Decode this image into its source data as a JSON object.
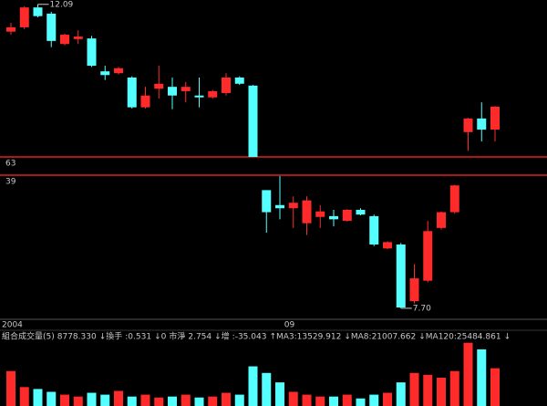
{
  "chart_data": {
    "type": "candlestick",
    "categories": [
      "2004",
      null,
      null,
      null,
      null,
      null,
      null,
      null,
      null,
      null,
      null,
      null,
      null,
      null,
      null,
      null,
      null,
      null,
      null,
      null,
      null,
      "09",
      null,
      null,
      null,
      null,
      null,
      null,
      null,
      null,
      null,
      null,
      null,
      null,
      null,
      null,
      null
    ],
    "ohlc": [
      [
        11.65,
        11.79,
        11.6,
        11.72
      ],
      [
        11.72,
        12.06,
        11.69,
        12.04
      ],
      [
        12.04,
        12.09,
        11.88,
        11.9
      ],
      [
        11.94,
        11.97,
        11.4,
        11.5
      ],
      [
        11.45,
        11.62,
        11.43,
        11.6
      ],
      [
        11.53,
        11.67,
        11.45,
        11.57
      ],
      [
        11.54,
        11.58,
        11.08,
        11.1
      ],
      [
        11.01,
        11.1,
        10.87,
        10.95
      ],
      [
        10.98,
        11.08,
        10.96,
        11.06
      ],
      [
        10.91,
        10.93,
        10.41,
        10.43
      ],
      [
        10.43,
        10.76,
        10.41,
        10.62
      ],
      [
        10.73,
        11.1,
        10.57,
        10.81
      ],
      [
        10.76,
        10.91,
        10.4,
        10.62
      ],
      [
        10.69,
        10.84,
        10.51,
        10.76
      ],
      [
        10.62,
        10.91,
        10.43,
        10.59
      ],
      [
        10.59,
        10.71,
        10.57,
        10.69
      ],
      [
        10.66,
        10.98,
        10.62,
        10.91
      ],
      [
        10.91,
        10.93,
        10.79,
        10.81
      ],
      [
        10.78,
        10.79,
        9.63,
        9.63
      ],
      [
        9.2,
        9.2,
        8.66,
        8.92
      ],
      [
        9.01,
        9.38,
        8.83,
        8.97
      ],
      [
        8.97,
        9.12,
        8.72,
        9.04
      ],
      [
        8.78,
        9.12,
        8.63,
        9.07
      ],
      [
        8.86,
        9.01,
        8.72,
        8.93
      ],
      [
        8.87,
        8.95,
        8.74,
        8.83
      ],
      [
        8.81,
        8.96,
        8.8,
        8.95
      ],
      [
        8.95,
        8.97,
        8.88,
        8.89
      ],
      [
        8.87,
        8.89,
        8.49,
        8.51
      ],
      [
        8.46,
        8.55,
        8.45,
        8.54
      ],
      [
        8.51,
        8.53,
        7.7,
        7.71
      ],
      [
        7.79,
        8.26,
        7.76,
        8.08
      ],
      [
        8.05,
        8.81,
        8.03,
        8.68
      ],
      [
        8.72,
        8.93,
        8.7,
        8.92
      ],
      [
        8.92,
        9.27,
        8.9,
        9.26
      ],
      [
        10.03,
        10.26,
        9.73,
        10.25
      ],
      [
        10.25,
        10.51,
        9.88,
        10.07
      ],
      [
        10.07,
        10.45,
        9.88,
        10.44
      ]
    ],
    "volume": [
      62900,
      34000,
      30600,
      25500,
      20400,
      17000,
      23800,
      20400,
      27200,
      17000,
      20400,
      15300,
      17000,
      20400,
      15300,
      17000,
      23800,
      20400,
      71400,
      59500,
      42500,
      25500,
      20400,
      17000,
      17000,
      20400,
      13600,
      20400,
      23800,
      42500,
      59500,
      56100,
      51000,
      62900,
      113900,
      102000,
      68000
    ],
    "vlim": [
      0,
      115000
    ],
    "ylim": [
      7.56,
      12.16
    ],
    "break_lines": [
      {
        "value": 9.63,
        "label": "63"
      },
      {
        "value": 9.39,
        "label": "39"
      }
    ],
    "annotations": [
      {
        "index": 2,
        "value": 12.09
      },
      {
        "index": 29,
        "value": 7.7,
        "label": "7.70"
      }
    ],
    "up_color": "#ff2a2a",
    "down_color": "#54ffff",
    "volume_header": [
      {
        "text": "組合成交量(5)",
        "color": "#c8c8c8"
      },
      {
        "text": "8778.330",
        "color": "#ffffff"
      },
      {
        "text": "↓換手",
        "color": "#ffff54"
      },
      {
        "text": ":0.531",
        "color": "#ffffff"
      },
      {
        "text": "↓0",
        "color": "#ffffff"
      },
      {
        "text": "市淨",
        "color": "#ff2a2a"
      },
      {
        "text": "2.754",
        "color": "#ff2a2a"
      },
      {
        "text": "↓增",
        "color": "#ff2a2a"
      },
      {
        "text": ":-35.043",
        "color": "#ff2a2a"
      },
      {
        "text": "↑MA3:13529.912",
        "color": "#54ffff"
      },
      {
        "text": "↓MA8:21007.662",
        "color": "#ffff54"
      },
      {
        "text": "↓MA120:25484.861",
        "color": "#ff54ff"
      },
      {
        "text": "↓",
        "color": "#ff54ff"
      }
    ]
  }
}
